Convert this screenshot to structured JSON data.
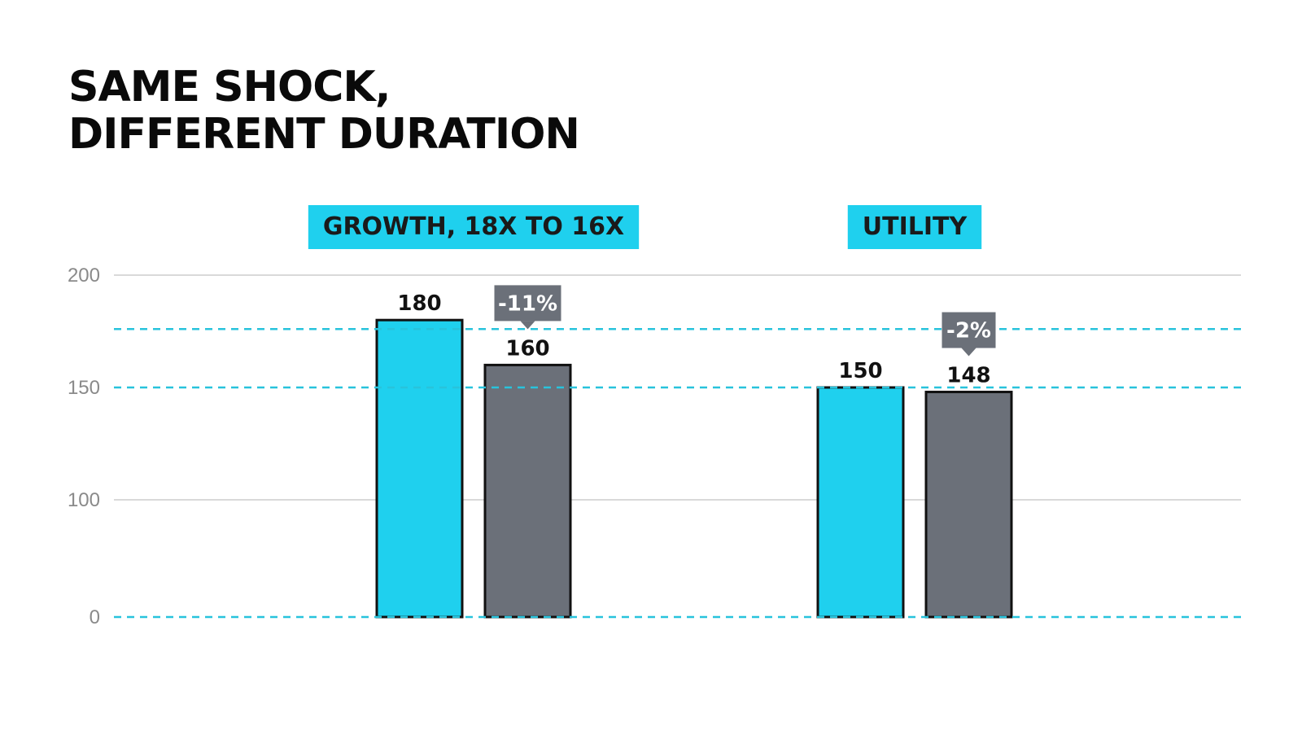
{
  "title_lines": [
    "SAME SHOCK,",
    "DIFFERENT DURATION"
  ],
  "colors": {
    "before": "#1fd0ee",
    "after": "#6b7079",
    "badge": "#6b7079",
    "grid": "#d9d9d9",
    "dashed": "#28c3dc",
    "category_bg": "#1fd0ee"
  },
  "chart_data": {
    "type": "bar",
    "title": "SAME SHOCK, DIFFERENT DURATION",
    "categories": [
      "GROWTH, 18X TO 16X",
      "UTILITY"
    ],
    "series": [
      {
        "values": [
          180,
          150
        ]
      },
      {
        "values": [
          160,
          148
        ]
      }
    ],
    "value_labels": [
      [
        "180",
        "150"
      ],
      [
        "160",
        "148"
      ]
    ],
    "change_badges": [
      "-11%",
      "-2%"
    ],
    "y_ticks": [
      0,
      100,
      150,
      200
    ],
    "y_tick_labels": [
      "0",
      "100",
      "150",
      "200"
    ],
    "reference_lines": [
      0,
      150,
      176
    ],
    "grid": true,
    "xlabel": "",
    "ylabel": ""
  }
}
